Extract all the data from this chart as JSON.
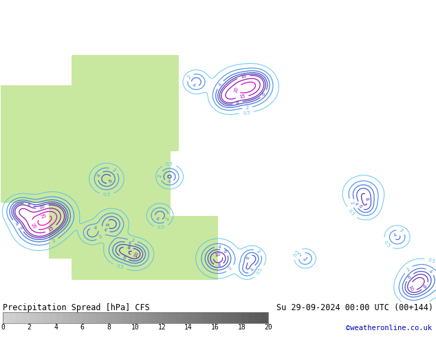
{
  "title_left": "Precipitation Spread [hPa] CFS",
  "title_right": "Su 29-09-2024 00:00 UTC (00+144)",
  "credit": "©weatheronline.co.uk",
  "map_bg_ocean": "#cce8f0",
  "map_bg_land": "#c8e8a0",
  "map_bg_gray_land": "#b8b8b8",
  "contour_color_05": "#50c0f0",
  "text_color": "#000000",
  "credit_color": "#0000bb",
  "lon_min": 85,
  "lon_max": 175,
  "lat_min": -15,
  "lat_max": 55,
  "weather_centers": [
    {
      "lon": 135.5,
      "lat": 34.5,
      "amp": 22,
      "sigx": 2.5,
      "sigy": 2.0
    },
    {
      "lon": 132.0,
      "lat": 32.5,
      "amp": 12,
      "sigx": 1.5,
      "sigy": 1.5
    },
    {
      "lon": 138.0,
      "lat": 36.0,
      "amp": 8,
      "sigx": 1.5,
      "sigy": 1.5
    },
    {
      "lon": 125.5,
      "lat": 36.0,
      "amp": 6,
      "sigx": 1.2,
      "sigy": 1.2
    },
    {
      "lon": 96.0,
      "lat": 5.0,
      "amp": 18,
      "sigx": 2.0,
      "sigy": 2.0
    },
    {
      "lon": 93.0,
      "lat": 3.0,
      "amp": 22,
      "sigx": 2.2,
      "sigy": 2.2
    },
    {
      "lon": 89.5,
      "lat": 6.0,
      "amp": 15,
      "sigx": 1.5,
      "sigy": 1.5
    },
    {
      "lon": 107.0,
      "lat": 13.5,
      "amp": 8,
      "sigx": 1.5,
      "sigy": 1.5
    },
    {
      "lon": 120.0,
      "lat": 14.0,
      "amp": 7,
      "sigx": 1.2,
      "sigy": 1.2
    },
    {
      "lon": 113.0,
      "lat": -4.0,
      "amp": 10,
      "sigx": 1.5,
      "sigy": 1.5
    },
    {
      "lon": 130.0,
      "lat": -5.0,
      "amp": 12,
      "sigx": 1.8,
      "sigy": 1.8
    },
    {
      "lon": 137.0,
      "lat": -5.0,
      "amp": 8,
      "sigx": 1.2,
      "sigy": 1.2
    },
    {
      "lon": 136.0,
      "lat": -7.5,
      "amp": 6,
      "sigx": 1.0,
      "sigy": 1.0
    },
    {
      "lon": 148.0,
      "lat": -5.0,
      "amp": 5,
      "sigx": 1.0,
      "sigy": 1.0
    },
    {
      "lon": 160.0,
      "lat": 10.0,
      "amp": 8,
      "sigx": 1.8,
      "sigy": 1.8
    },
    {
      "lon": 160.5,
      "lat": 7.0,
      "amp": 6,
      "sigx": 1.3,
      "sigy": 1.3
    },
    {
      "lon": 167.0,
      "lat": 0.0,
      "amp": 5,
      "sigx": 1.2,
      "sigy": 1.2
    },
    {
      "lon": 172.0,
      "lat": -10.0,
      "amp": 10,
      "sigx": 2.0,
      "sigy": 2.0
    },
    {
      "lon": 170.0,
      "lat": -12.0,
      "amp": 7,
      "sigx": 1.5,
      "sigy": 1.5
    },
    {
      "lon": 153.0,
      "lat": -20.0,
      "amp": 5,
      "sigx": 1.2,
      "sigy": 1.2
    },
    {
      "lon": 108.0,
      "lat": 3.0,
      "amp": 8,
      "sigx": 1.5,
      "sigy": 1.5
    },
    {
      "lon": 104.0,
      "lat": 1.0,
      "amp": 6,
      "sigx": 1.2,
      "sigy": 1.2
    },
    {
      "lon": 118.0,
      "lat": 5.0,
      "amp": 6,
      "sigx": 1.2,
      "sigy": 1.2
    },
    {
      "lon": 110.0,
      "lat": -3.0,
      "amp": 8,
      "sigx": 1.5,
      "sigy": 1.5
    }
  ],
  "smooth_sigma": 1.2
}
